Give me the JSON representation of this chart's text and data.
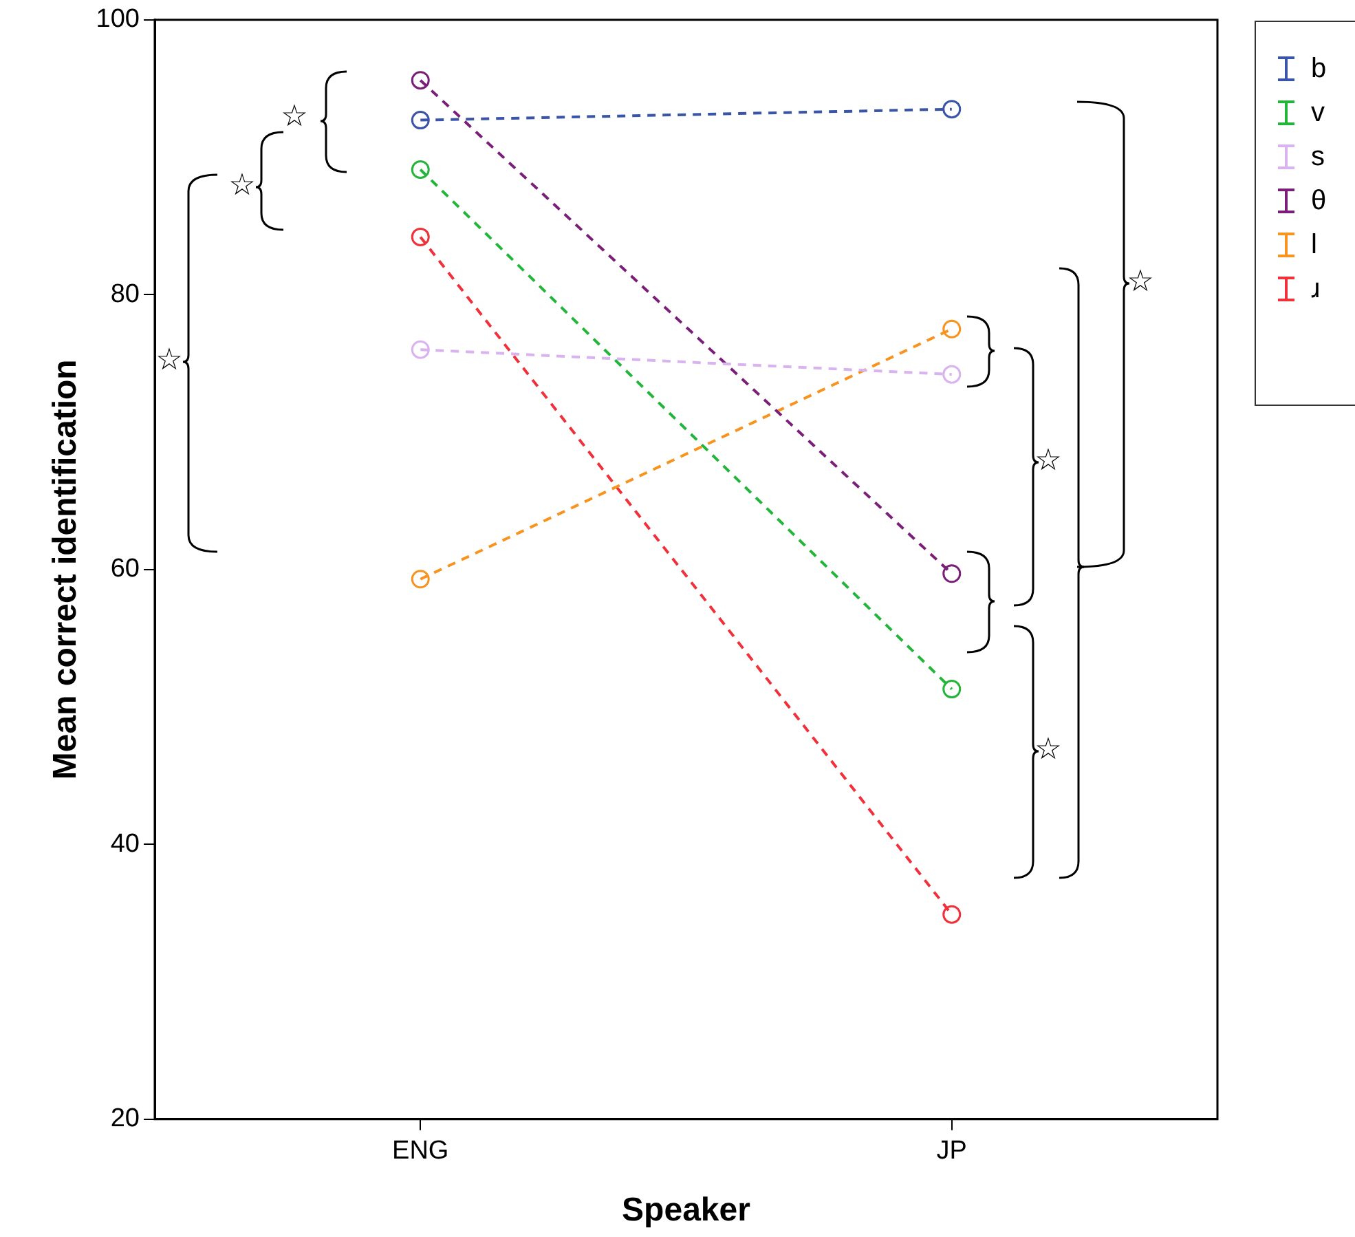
{
  "chart_data": {
    "type": "line",
    "xlabel": "Speaker",
    "ylabel": "Mean correct identification",
    "categories": [
      "ENG",
      "JP"
    ],
    "series": [
      {
        "name": "b",
        "color": "#3a55a8",
        "values": [
          92.7,
          93.5
        ]
      },
      {
        "name": "v",
        "color": "#22b53a",
        "values": [
          89.1,
          51.3
        ]
      },
      {
        "name": "s",
        "color": "#d9b3f0",
        "values": [
          76.0,
          74.2
        ]
      },
      {
        "name": "θ",
        "color": "#7a1f78",
        "values": [
          95.6,
          59.7
        ]
      },
      {
        "name": "l",
        "color": "#f7931e",
        "values": [
          59.3,
          77.5
        ]
      },
      {
        "name": "ɹ",
        "color": "#f0303a",
        "values": [
          84.2,
          34.9
        ]
      }
    ],
    "ylim": [
      20,
      100
    ],
    "yticks": [
      20,
      40,
      60,
      80,
      100
    ],
    "grid": false,
    "legend": "top right",
    "marker": "circle",
    "line_style": "dashed",
    "annotations": [
      "☆",
      "☆",
      "☆",
      "☆",
      "☆",
      "☆"
    ]
  }
}
